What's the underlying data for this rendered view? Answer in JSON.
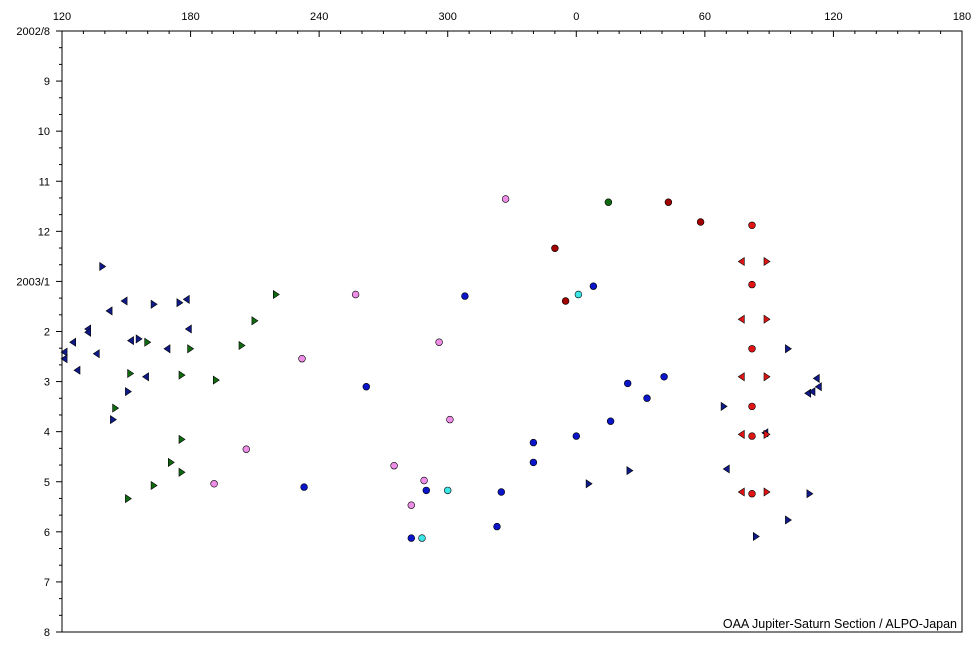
{
  "chart_data": {
    "type": "scatter",
    "title": "",
    "credit": "OAA Jupiter-Saturn Section / ALPO-Japan",
    "x_axis": {
      "position": "top",
      "range_deg": [
        120,
        180
      ],
      "span_deg": 420,
      "tick_labels": [
        "120",
        "180",
        "240",
        "300",
        "0",
        "60",
        "120",
        "180"
      ],
      "minor_tick_deg": 10
    },
    "y_axis": {
      "position": "left",
      "orientation": "top-to-bottom",
      "range": [
        "2002-08-01",
        "2003-08-01"
      ],
      "tick_labels": [
        "2002/8",
        "9",
        "10",
        "11",
        "12",
        "2003/1",
        "2",
        "3",
        "4",
        "5",
        "6",
        "7",
        "8"
      ]
    },
    "grid": false,
    "legend": "none",
    "colors": {
      "blue": "#0a14c8",
      "navy": "#0f1a88",
      "cyan": "#3ce6e6",
      "pink": "#ee8ee6",
      "red": "#e01414",
      "darkred": "#a00000",
      "green": "#0f6a0f",
      "outline": "#000000"
    },
    "series": [
      {
        "color": "blue",
        "marker": "circle",
        "points": [
          [
            308,
            161
          ],
          [
            290,
            279
          ],
          [
            283,
            308
          ]
        ]
      },
      {
        "color": "cyan",
        "marker": "circle",
        "points": [
          [
            1,
            160
          ],
          [
            300,
            279
          ],
          [
            288,
            308
          ]
        ]
      },
      {
        "color": "pink",
        "marker": "circle",
        "points": [
          [
            327,
            102
          ],
          [
            296,
            189
          ],
          [
            275,
            264
          ]
        ]
      },
      {
        "color": "pink",
        "marker": "circle",
        "points": [
          [
            257,
            160
          ],
          [
            232,
            199
          ],
          [
            206,
            254
          ],
          [
            191,
            275
          ]
        ]
      },
      {
        "color": "pink",
        "marker": "circle",
        "points": [
          [
            301,
            236
          ],
          [
            289,
            273
          ],
          [
            283,
            288
          ]
        ]
      },
      {
        "color": "blue",
        "marker": "circle",
        "points": [
          [
            8,
            155
          ],
          [
            340,
            262
          ],
          [
            323,
            301
          ]
        ]
      },
      {
        "color": "blue",
        "marker": "circle",
        "points": [
          [
            262,
            216
          ],
          [
            233,
            277
          ]
        ]
      },
      {
        "color": "blue",
        "marker": "circle",
        "points": [
          [
            340,
            250
          ],
          [
            325,
            280
          ]
        ]
      },
      {
        "color": "blue",
        "marker": "circle",
        "points": [
          [
            24,
            214
          ],
          [
            16,
            237
          ],
          [
            0,
            246
          ]
        ]
      },
      {
        "color": "blue",
        "marker": "circle",
        "points": [
          [
            41,
            210
          ],
          [
            33,
            223
          ]
        ]
      },
      {
        "color": "navy",
        "marker": "tri-right",
        "points": [
          [
            139,
            143
          ],
          [
            99,
            193
          ],
          [
            69,
            228
          ],
          [
            25,
            267
          ],
          [
            6,
            275
          ]
        ]
      },
      {
        "color": "navy",
        "marker": "tri-left",
        "points": [
          [
            136,
            196
          ],
          [
            108,
            220
          ],
          [
            88,
            244
          ],
          [
            70,
            266
          ]
        ]
      },
      {
        "color": "navy",
        "marker": "tri-right",
        "points": [
          [
            144,
            236
          ],
          [
            109,
            281
          ],
          [
            99,
            297
          ],
          [
            84,
            307
          ]
        ]
      },
      {
        "color": "navy",
        "marker": "tri-left",
        "points": [
          [
            178,
            163
          ],
          [
            152,
            188
          ],
          [
            127,
            206
          ],
          [
            113,
            216
          ],
          [
            110,
            219
          ]
        ]
      },
      {
        "color": "navy",
        "marker": "tri-left",
        "points": [
          [
            142,
            170
          ],
          [
            132,
            181
          ],
          [
            125,
            189
          ],
          [
            121,
            195
          ]
        ]
      },
      {
        "color": "navy",
        "marker": "tri-left",
        "points": [
          [
            149,
            164
          ],
          [
            132,
            183
          ],
          [
            121,
            199
          ],
          [
            112,
            211
          ]
        ]
      },
      {
        "color": "navy",
        "marker": "tri-right",
        "points": [
          [
            175,
            165
          ],
          [
            163,
            166
          ],
          [
            156,
            187
          ],
          [
            151,
            219
          ]
        ]
      },
      {
        "color": "navy",
        "marker": "tri-left",
        "points": [
          [
            179,
            181
          ],
          [
            169,
            193
          ],
          [
            159,
            210
          ]
        ]
      },
      {
        "color": "green",
        "marker": "tri-right",
        "points": [
          [
            220,
            160
          ],
          [
            210,
            176
          ],
          [
            204,
            191
          ],
          [
            192,
            212
          ]
        ]
      },
      {
        "color": "green",
        "marker": "tri-right",
        "points": [
          [
            160,
            189
          ],
          [
            152,
            208
          ],
          [
            145,
            229
          ]
        ]
      },
      {
        "color": "green",
        "marker": "tri-right",
        "points": [
          [
            180,
            193
          ],
          [
            176,
            209
          ]
        ]
      },
      {
        "color": "green",
        "marker": "tri-right",
        "points": [
          [
            176,
            268
          ],
          [
            163,
            276
          ],
          [
            151,
            284
          ]
        ]
      },
      {
        "color": "green",
        "marker": "tri-right",
        "points": [
          [
            176,
            248
          ],
          [
            171,
            262
          ]
        ]
      },
      {
        "color": "green",
        "marker": "circle",
        "points": [
          [
            15,
            104
          ]
        ]
      },
      {
        "color": "red",
        "marker": "circle",
        "points": [
          [
            82,
            118
          ],
          [
            82,
            154
          ],
          [
            82,
            193
          ],
          [
            82,
            228
          ],
          [
            82,
            246
          ],
          [
            82,
            281
          ]
        ]
      },
      {
        "color": "red",
        "marker": "tri-left",
        "points": [
          [
            77,
            140
          ],
          [
            77,
            175
          ],
          [
            77,
            210
          ],
          [
            77,
            245
          ],
          [
            77,
            280
          ]
        ]
      },
      {
        "color": "red",
        "marker": "tri-right",
        "points": [
          [
            89,
            140
          ],
          [
            89,
            175
          ],
          [
            89,
            210
          ],
          [
            89,
            245
          ],
          [
            89,
            280
          ]
        ]
      },
      {
        "color": "darkred",
        "marker": "circle",
        "points": [
          [
            350,
            132
          ],
          [
            355,
            164
          ],
          [
            43,
            104
          ],
          [
            58,
            116
          ]
        ]
      }
    ]
  }
}
